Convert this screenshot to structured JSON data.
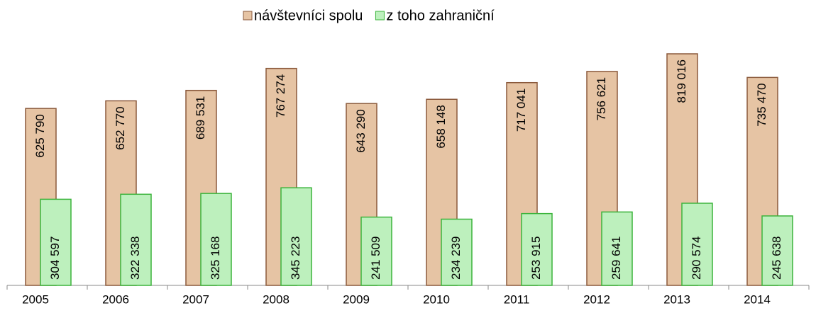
{
  "chart_data": {
    "type": "bar",
    "categories": [
      "2005",
      "2006",
      "2007",
      "2008",
      "2009",
      "2010",
      "2011",
      "2012",
      "2013",
      "2014"
    ],
    "series": [
      {
        "name": "návštevníci spolu",
        "color": "#e6c4a4",
        "edge": "#8b5a3c",
        "values": [
          625790,
          652770,
          689531,
          767274,
          643290,
          658148,
          717041,
          756621,
          819016,
          735470
        ],
        "value_labels": [
          "625 790",
          "652 770",
          "689 531",
          "767 274",
          "643 290",
          "658 148",
          "717 041",
          "756 621",
          "819 016",
          "735 470"
        ]
      },
      {
        "name": "z toho zahraniční",
        "color": "#bdf0bd",
        "edge": "#3cb43c",
        "values": [
          304597,
          322338,
          325168,
          345223,
          241509,
          234239,
          253915,
          259641,
          290574,
          245638
        ],
        "value_labels": [
          "304 597",
          "322 338",
          "325 168",
          "345 223",
          "241 509",
          "234 239",
          "253 915",
          "259 641",
          "290 574",
          "245 638"
        ]
      }
    ]
  }
}
